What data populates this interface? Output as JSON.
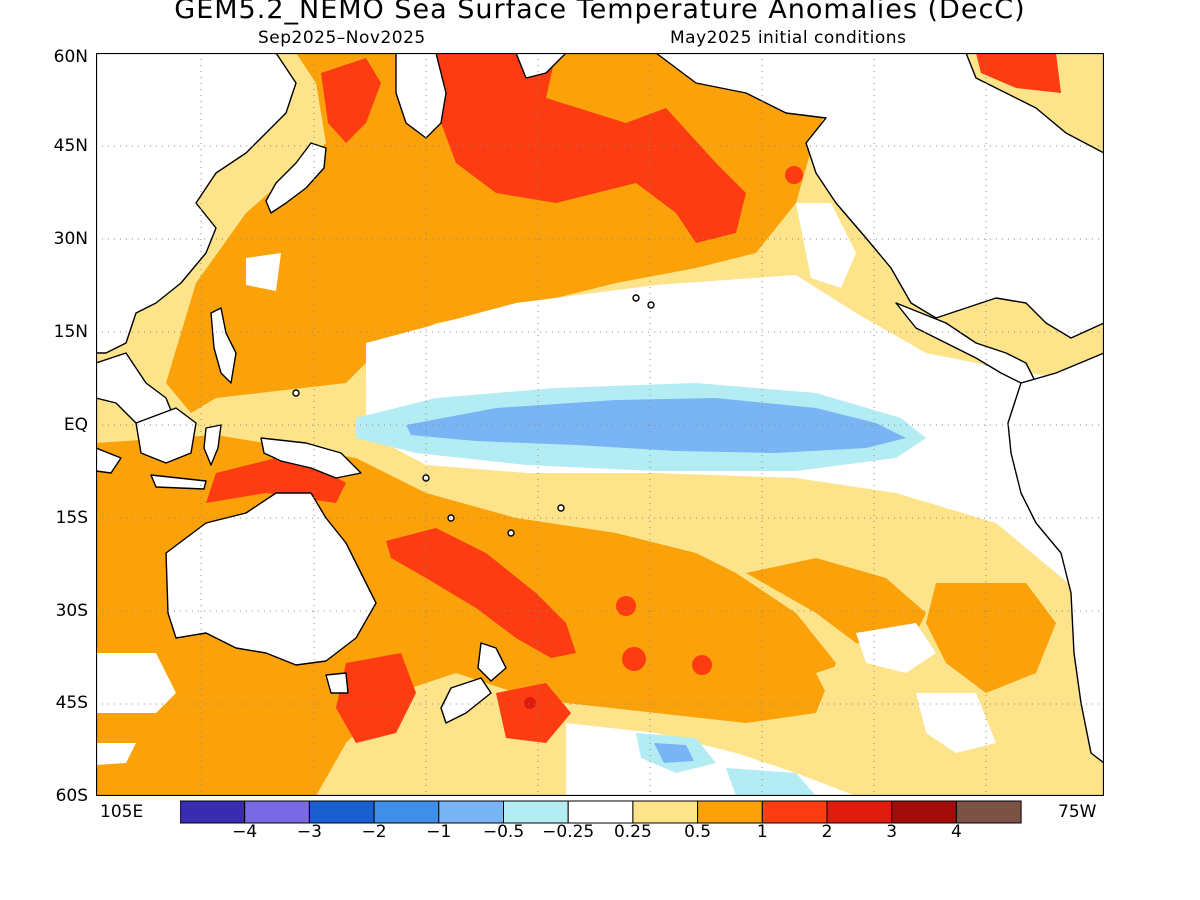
{
  "title": "GEM5.2_NEMO Sea Surface Temperature Anomalies (DecC)",
  "subtitle_left": "Sep2025–Nov2025",
  "subtitle_right": "May2025 initial conditions",
  "map": {
    "region": "Pacific Ocean",
    "lon_range": [
      "105E",
      "75W"
    ],
    "lat_range": [
      "60S",
      "60N"
    ],
    "lat_labels": [
      "60N",
      "45N",
      "30N",
      "15N",
      "EQ",
      "15S",
      "30S",
      "45S",
      "60S"
    ],
    "lon_edge_labels": {
      "left": "105E",
      "right": "75W"
    },
    "grid": true,
    "land_color": "#ffffff"
  },
  "colorbar": {
    "colors": [
      "#3a2cb0",
      "#7b6ae6",
      "#1a5fd0",
      "#3f8ee8",
      "#79b4f4",
      "#b4ecf4",
      "#ffffff",
      "#fde38a",
      "#fba20a",
      "#fd3c12",
      "#df1b10",
      "#a30a0a",
      "#7a5246"
    ],
    "labels": [
      "−4",
      "−3",
      "−2",
      "−1",
      "−0.5",
      "−0.25",
      "0.25",
      "0.5",
      "1",
      "2",
      "3",
      "4"
    ]
  }
}
